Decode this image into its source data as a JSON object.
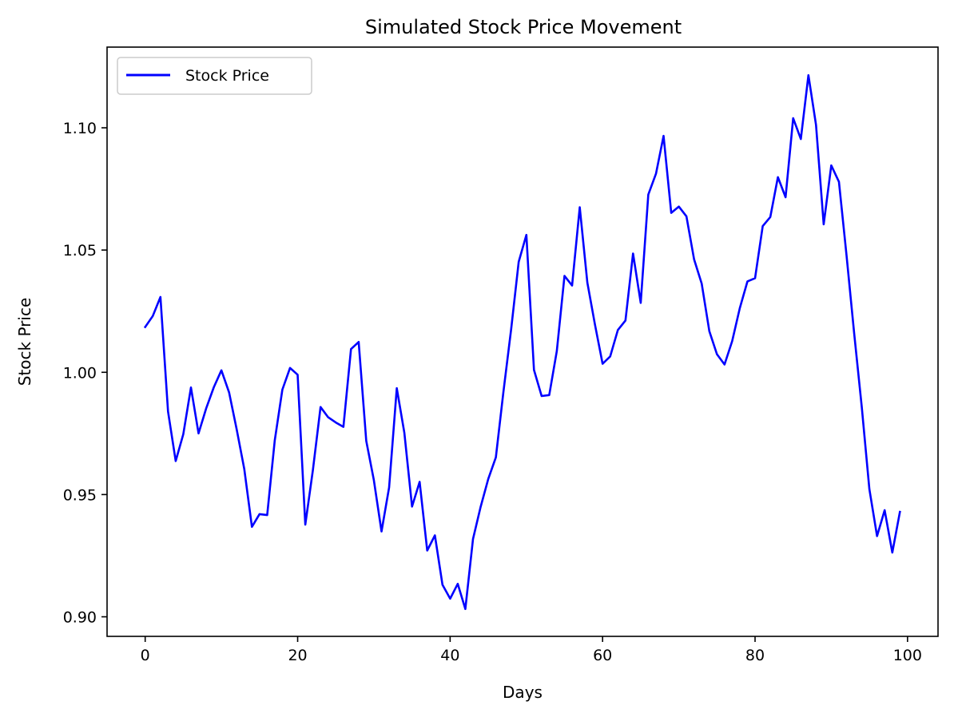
{
  "chart_data": {
    "type": "line",
    "title": "Simulated Stock Price Movement",
    "xlabel": "Days",
    "ylabel": "Stock Price",
    "xlim": [
      -5,
      104
    ],
    "ylim": [
      0.892,
      1.133
    ],
    "xticks": [
      0,
      20,
      40,
      60,
      80,
      100
    ],
    "yticks": [
      0.9,
      0.95,
      1.0,
      1.05,
      1.1
    ],
    "ytick_labels": [
      "0.90",
      "0.95",
      "1.00",
      "1.05",
      "1.10"
    ],
    "grid": false,
    "legend": {
      "position": "top-left"
    },
    "series": [
      {
        "name": "Stock Price",
        "color": "#0000ff",
        "x": [
          0,
          1,
          2,
          3,
          4,
          5,
          6,
          7,
          8,
          9,
          10,
          11,
          12,
          13,
          14,
          15,
          16,
          17,
          18,
          19,
          20,
          21,
          22,
          23,
          24,
          25,
          26,
          27,
          28,
          29,
          30,
          31,
          32,
          33,
          34,
          35,
          36,
          37,
          38,
          39,
          40,
          41,
          42,
          43,
          44,
          45,
          46,
          47,
          48,
          49,
          50,
          51,
          52,
          53,
          54,
          55,
          56,
          57,
          58,
          59,
          60,
          61,
          62,
          63,
          64,
          65,
          66,
          67,
          68,
          69,
          70,
          71,
          72,
          73,
          74,
          75,
          76,
          77,
          78,
          79,
          80,
          81,
          82,
          83,
          84,
          85,
          86,
          87,
          88,
          89,
          90,
          91,
          92,
          93,
          94,
          95,
          96,
          97,
          98,
          99
        ],
        "values": [
          1.0185,
          1.023,
          1.0308,
          0.984,
          0.9637,
          0.9747,
          0.9938,
          0.975,
          0.9852,
          0.9939,
          1.0008,
          0.9918,
          0.9767,
          0.9605,
          0.9368,
          0.942,
          0.9416,
          0.9722,
          0.9929,
          1.0018,
          0.999,
          0.9377,
          0.96,
          0.9858,
          0.9816,
          0.9795,
          0.9777,
          1.0095,
          1.0124,
          0.9719,
          0.9559,
          0.9349,
          0.9529,
          0.9935,
          0.9752,
          0.9451,
          0.9552,
          0.9271,
          0.9333,
          0.9131,
          0.9074,
          0.9135,
          0.9032,
          0.9318,
          0.9449,
          0.9564,
          0.9652,
          0.9921,
          1.0175,
          1.0452,
          1.0562,
          1.001,
          0.9903,
          0.9907,
          1.0087,
          1.0394,
          1.0355,
          1.0675,
          1.0367,
          1.0196,
          1.0035,
          1.0065,
          1.0173,
          1.0212,
          1.0486,
          1.0284,
          1.0727,
          1.0812,
          1.0967,
          1.0652,
          1.0678,
          1.0638,
          1.0462,
          1.0363,
          1.0168,
          1.0074,
          1.0032,
          1.0128,
          1.0262,
          1.0372,
          1.0385,
          1.0598,
          1.0635,
          1.0798,
          1.0716,
          1.1039,
          1.0954,
          1.1215,
          1.1012,
          1.0605,
          1.0846,
          1.0779,
          1.0478,
          1.0161,
          0.9857,
          0.9522,
          0.933,
          0.9436,
          0.9263,
          0.9429
        ]
      }
    ]
  }
}
